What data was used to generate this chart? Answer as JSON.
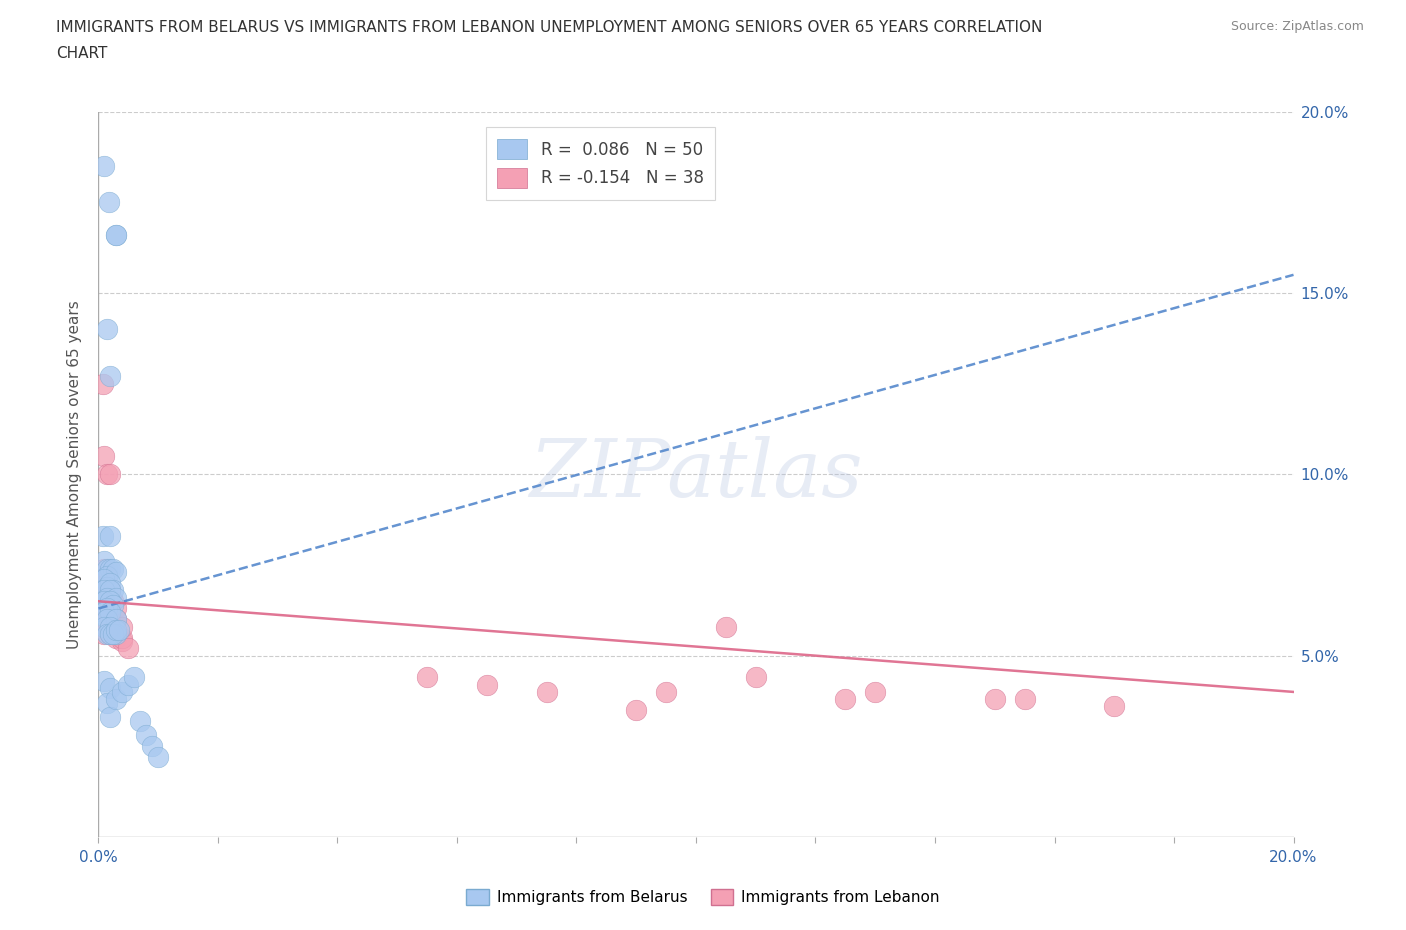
{
  "title_line1": "IMMIGRANTS FROM BELARUS VS IMMIGRANTS FROM LEBANON UNEMPLOYMENT AMONG SENIORS OVER 65 YEARS CORRELATION",
  "title_line2": "CHART",
  "source": "Source: ZipAtlas.com",
  "ylabel": "Unemployment Among Seniors over 65 years",
  "watermark": "ZIPatlas",
  "xlim": [
    0.0,
    0.2
  ],
  "ylim": [
    0.0,
    0.2
  ],
  "legend_belarus": "R =  0.086   N = 50",
  "legend_lebanon": "R = -0.154   N = 38",
  "belarus_color": "#a8c8f0",
  "lebanon_color": "#f4a0b4",
  "belarus_edge_color": "#7aaad0",
  "lebanon_edge_color": "#d07090",
  "trend_belarus_color": "#5588cc",
  "trend_lebanon_color": "#dd6688",
  "background_color": "#ffffff",
  "grid_color": "#cccccc",
  "right_ytick_labels": [
    "",
    "",
    "5.0%",
    "",
    "10.0%",
    "",
    "15.0%",
    "",
    "20.0%"
  ],
  "right_ytick_vals": [
    0.0,
    0.025,
    0.05,
    0.075,
    0.1,
    0.125,
    0.15,
    0.175,
    0.2
  ],
  "belarus_x": [
    0.001,
    0.0018,
    0.003,
    0.003,
    0.0015,
    0.002,
    0.0008,
    0.002,
    0.001,
    0.0015,
    0.002,
    0.0025,
    0.0015,
    0.003,
    0.001,
    0.0015,
    0.002,
    0.0025,
    0.001,
    0.002,
    0.0015,
    0.003,
    0.001,
    0.002,
    0.0025,
    0.0015,
    0.001,
    0.002,
    0.0015,
    0.003,
    0.001,
    0.002,
    0.0015,
    0.003,
    0.002,
    0.0025,
    0.003,
    0.0035,
    0.001,
    0.002,
    0.0015,
    0.002,
    0.003,
    0.004,
    0.005,
    0.006,
    0.007,
    0.008,
    0.009,
    0.01
  ],
  "belarus_y": [
    0.185,
    0.175,
    0.166,
    0.166,
    0.14,
    0.127,
    0.083,
    0.083,
    0.076,
    0.074,
    0.074,
    0.074,
    0.072,
    0.073,
    0.071,
    0.069,
    0.07,
    0.068,
    0.068,
    0.068,
    0.066,
    0.066,
    0.065,
    0.065,
    0.064,
    0.063,
    0.062,
    0.062,
    0.06,
    0.06,
    0.058,
    0.058,
    0.056,
    0.056,
    0.056,
    0.056,
    0.057,
    0.057,
    0.043,
    0.041,
    0.037,
    0.033,
    0.038,
    0.04,
    0.042,
    0.044,
    0.032,
    0.028,
    0.025,
    0.022
  ],
  "lebanon_x": [
    0.0008,
    0.001,
    0.0015,
    0.002,
    0.001,
    0.0015,
    0.002,
    0.0025,
    0.001,
    0.0015,
    0.002,
    0.0025,
    0.001,
    0.002,
    0.003,
    0.004,
    0.002,
    0.003,
    0.004,
    0.005,
    0.001,
    0.002,
    0.003,
    0.002,
    0.003,
    0.004,
    0.055,
    0.075,
    0.095,
    0.105,
    0.125,
    0.155,
    0.065,
    0.09,
    0.11,
    0.13,
    0.15,
    0.17
  ],
  "lebanon_y": [
    0.125,
    0.105,
    0.1,
    0.1,
    0.074,
    0.072,
    0.068,
    0.065,
    0.062,
    0.062,
    0.06,
    0.058,
    0.056,
    0.056,
    0.055,
    0.054,
    0.058,
    0.056,
    0.055,
    0.052,
    0.068,
    0.065,
    0.063,
    0.062,
    0.06,
    0.058,
    0.044,
    0.04,
    0.04,
    0.058,
    0.038,
    0.038,
    0.042,
    0.035,
    0.044,
    0.04,
    0.038,
    0.036
  ],
  "trend_belarus_y0": 0.063,
  "trend_belarus_y1": 0.155,
  "trend_lebanon_y0": 0.065,
  "trend_lebanon_y1": 0.04
}
